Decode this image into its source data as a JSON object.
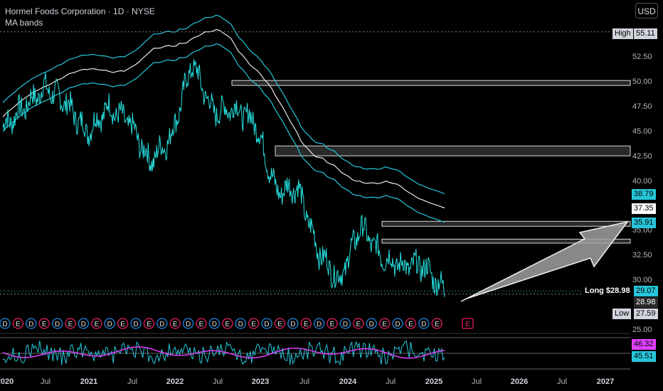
{
  "header": {
    "title": "Hormel Foods Corporation · 1D · NYSE",
    "indicator": "MA bands"
  },
  "currency_button": "USD",
  "price_axis": {
    "ticks": [
      "52.50",
      "50.00",
      "47.50",
      "45.00",
      "42.50",
      "40.00",
      "35.00",
      "32.50",
      "30.00",
      "25.00"
    ],
    "high_label": "High",
    "high_value": "55.11",
    "low_label": "Low",
    "low_value": "27.59",
    "badges": {
      "upper_band": "38.79",
      "middle_band": "37.35",
      "lower_band": "35.91",
      "last_price": "29.07",
      "position_price": "28.98"
    },
    "long_label": "Long $28.98",
    "rsi_badges": {
      "rsi": "46.32",
      "rsi_ma": "45.51"
    }
  },
  "time_axis": {
    "labels": [
      "2020",
      "Jul",
      "2021",
      "Jul",
      "2022",
      "Jul",
      "2023",
      "Jul",
      "2024",
      "Jul",
      "2025",
      "Jul",
      "2026",
      "Jul",
      "2027"
    ],
    "bold": [
      "2020",
      "2021",
      "2022",
      "2023",
      "2024",
      "2025",
      "2026",
      "2027"
    ]
  },
  "events": {
    "letters": "DEDEDEDEDEDEDEDEDEDEDEDEDEDEDEDEDE",
    "future": "E"
  },
  "colors": {
    "price": "#26e0e0",
    "band": "#26c6da",
    "middle": "#e0e0e0",
    "rsi_line": "#26c6da",
    "rsi_ma": "#e040fb",
    "earnings": "#e91e63",
    "dividend": "#1e88e5",
    "arrow": "#a8a8a8"
  },
  "chart_data": {
    "type": "line",
    "title": "Hormel Foods Corporation · 1D · NYSE",
    "x": [
      "2020-01",
      "2020-04",
      "2020-07",
      "2020-10",
      "2021-01",
      "2021-04",
      "2021-07",
      "2021-10",
      "2022-01",
      "2022-04",
      "2022-07",
      "2022-10",
      "2023-01",
      "2023-04",
      "2023-07",
      "2023-10",
      "2024-01",
      "2024-04",
      "2024-07",
      "2024-10",
      "2025-01",
      "2025-04"
    ],
    "series": [
      {
        "values": [
          45.5,
          47.5,
          49.5,
          48.0,
          45.0,
          47.5,
          46.0,
          42.0,
          44.5,
          52.0,
          47.0,
          47.5,
          46.0,
          39.0,
          39.5,
          33.0,
          30.0,
          35.5,
          32.5,
          31.5,
          31.5,
          29.0
        ]
      }
    ],
    "ylim": [
      25,
      55.5
    ],
    "high": 55.11,
    "low": 27.59,
    "last": 29.07,
    "position": {
      "side": "Long",
      "price": 28.98
    },
    "ma_bands": {
      "upper": 38.79,
      "middle": 37.35,
      "lower": 35.91
    },
    "zones": [
      [
        49.7,
        50.2
      ],
      [
        42.6,
        43.6
      ],
      [
        35.5,
        36.0
      ],
      [
        33.8,
        34.2
      ]
    ],
    "rsi": {
      "value": 46.32,
      "ma": 45.51
    }
  }
}
